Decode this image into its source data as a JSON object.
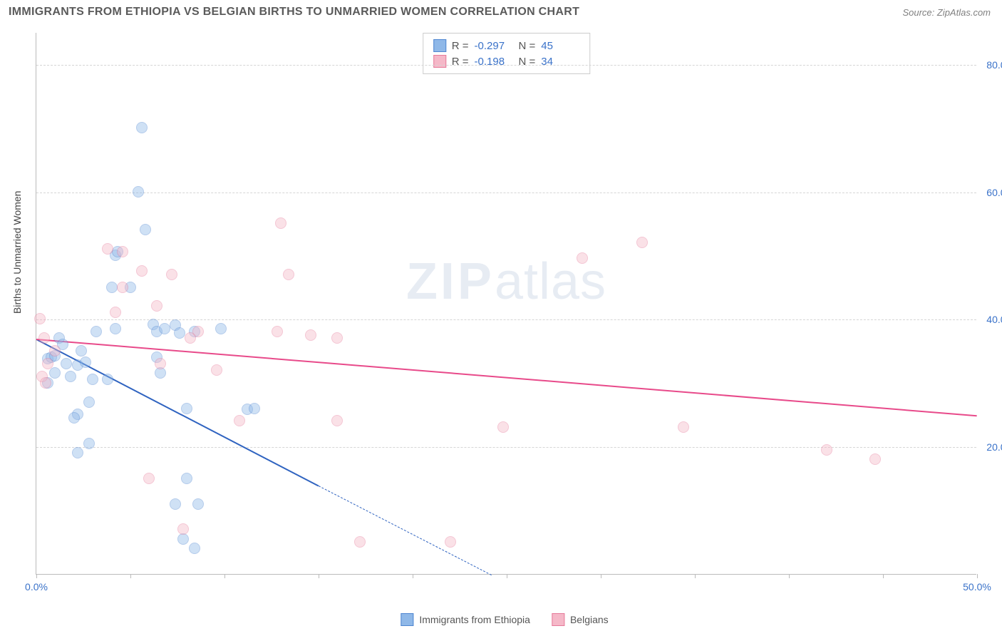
{
  "header": {
    "title": "IMMIGRANTS FROM ETHIOPIA VS BELGIAN BIRTHS TO UNMARRIED WOMEN CORRELATION CHART",
    "source": "Source: ZipAtlas.com"
  },
  "chart": {
    "type": "scatter",
    "ylabel": "Births to Unmarried Women",
    "watermark": {
      "bold": "ZIP",
      "rest": "atlas"
    },
    "xlim": [
      0,
      50
    ],
    "ylim": [
      0,
      85
    ],
    "x_ticks": [
      0,
      5,
      10,
      15,
      20,
      25,
      30,
      35,
      40,
      45,
      50
    ],
    "x_tick_labels": {
      "0": "0.0%",
      "50": "50.0%"
    },
    "y_gridlines": [
      20,
      40,
      60,
      80
    ],
    "y_tick_labels": {
      "20": "20.0%",
      "40": "40.0%",
      "60": "60.0%",
      "80": "80.0%"
    },
    "grid_color": "#d5d5d5",
    "axis_color": "#bbbbbb",
    "tick_label_color": "#3a72c9",
    "background_color": "#ffffff",
    "marker_radius": 8,
    "marker_opacity": 0.42,
    "series": [
      {
        "name": "Immigrants from Ethiopia",
        "fill": "#8fb8e8",
        "stroke": "#4f86d1",
        "r_value": "-0.297",
        "n_value": "45",
        "regression": {
          "x1": 0,
          "y1": 37,
          "x2": 15,
          "y2": 14,
          "extrap_x2": 24.2,
          "extrap_y2": 0,
          "color": "#2f63c0"
        },
        "points": [
          [
            5.6,
            70
          ],
          [
            5.4,
            60
          ],
          [
            4.2,
            38.5
          ],
          [
            1.2,
            37
          ],
          [
            1.4,
            36
          ],
          [
            0.6,
            33.8
          ],
          [
            0.8,
            34
          ],
          [
            1.0,
            34.2
          ],
          [
            1.6,
            33
          ],
          [
            1.0,
            31.5
          ],
          [
            1.8,
            31
          ],
          [
            0.6,
            30
          ],
          [
            2.2,
            32.8
          ],
          [
            2.4,
            35
          ],
          [
            2.6,
            33.2
          ],
          [
            3.0,
            30.5
          ],
          [
            2.8,
            27
          ],
          [
            2.2,
            25
          ],
          [
            2.0,
            24.5
          ],
          [
            3.8,
            30.5
          ],
          [
            4.0,
            45
          ],
          [
            4.2,
            50
          ],
          [
            4.3,
            50.5
          ],
          [
            5.0,
            45
          ],
          [
            5.8,
            54
          ],
          [
            6.2,
            39.2
          ],
          [
            6.4,
            38
          ],
          [
            6.8,
            38.5
          ],
          [
            7.4,
            39
          ],
          [
            7.6,
            37.8
          ],
          [
            6.6,
            31.5
          ],
          [
            8.4,
            38
          ],
          [
            9.8,
            38.5
          ],
          [
            8.0,
            26
          ],
          [
            8.0,
            15
          ],
          [
            8.6,
            11
          ],
          [
            7.4,
            11
          ],
          [
            7.8,
            5.5
          ],
          [
            8.4,
            4
          ],
          [
            11.2,
            25.8
          ],
          [
            11.6,
            26
          ],
          [
            2.8,
            20.5
          ],
          [
            2.2,
            19
          ],
          [
            6.4,
            34
          ],
          [
            3.2,
            38
          ]
        ]
      },
      {
        "name": "Belgians",
        "fill": "#f5b8c8",
        "stroke": "#e67a9a",
        "r_value": "-0.198",
        "n_value": "34",
        "regression": {
          "x1": 0,
          "y1": 37,
          "x2": 50,
          "y2": 25,
          "color": "#e84a8a"
        },
        "points": [
          [
            0.2,
            40
          ],
          [
            0.4,
            37
          ],
          [
            0.6,
            33
          ],
          [
            1.0,
            35
          ],
          [
            0.3,
            31
          ],
          [
            0.5,
            30
          ],
          [
            3.8,
            51
          ],
          [
            4.6,
            50.5
          ],
          [
            4.2,
            41
          ],
          [
            4.6,
            45
          ],
          [
            5.6,
            47.5
          ],
          [
            6.4,
            42
          ],
          [
            7.2,
            47
          ],
          [
            8.6,
            38
          ],
          [
            8.2,
            37
          ],
          [
            9.6,
            32
          ],
          [
            6.6,
            33
          ],
          [
            6.0,
            15
          ],
          [
            7.8,
            7
          ],
          [
            13.4,
            47
          ],
          [
            13.0,
            55
          ],
          [
            12.8,
            38
          ],
          [
            14.6,
            37.5
          ],
          [
            10.8,
            24
          ],
          [
            16.0,
            24
          ],
          [
            16.0,
            37
          ],
          [
            17.2,
            5
          ],
          [
            22.0,
            5
          ],
          [
            24.8,
            23
          ],
          [
            29.0,
            49.5
          ],
          [
            32.2,
            52
          ],
          [
            34.4,
            23
          ],
          [
            42.0,
            19.5
          ],
          [
            44.6,
            18
          ]
        ]
      }
    ],
    "stats_box": {
      "r_label": "R =",
      "n_label": "N ="
    },
    "legend": [
      {
        "label": "Immigrants from Ethiopia",
        "fill": "#8fb8e8",
        "stroke": "#4f86d1"
      },
      {
        "label": "Belgians",
        "fill": "#f5b8c8",
        "stroke": "#e67a9a"
      }
    ]
  }
}
